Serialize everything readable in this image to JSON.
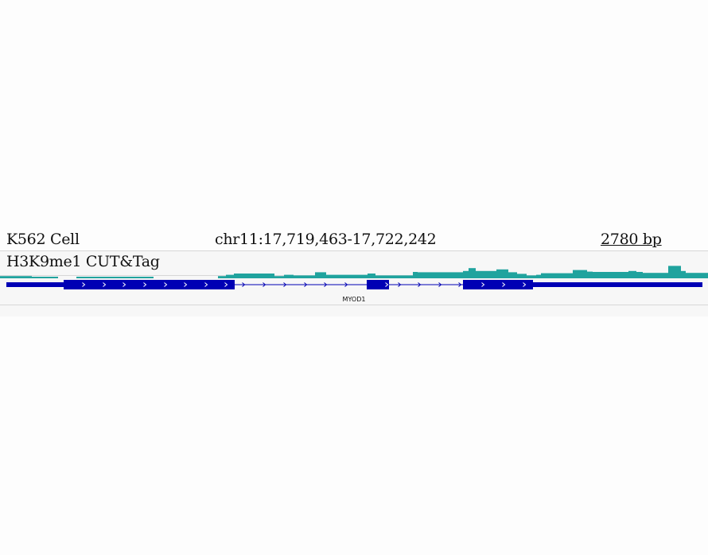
{
  "header": {
    "cell": "K562 Cell",
    "locus": "chr11:17,719,463-17,722,242",
    "scale": "2780 bp"
  },
  "track": {
    "label": "H3K9me1 CUT&Tag",
    "color": "#20a39e",
    "coverage": [
      {
        "start": 0,
        "end": 40,
        "v": 0.35
      },
      {
        "start": 40,
        "end": 73,
        "v": 0.25
      },
      {
        "start": 96,
        "end": 193,
        "v": 0.25
      },
      {
        "start": 274,
        "end": 284,
        "v": 0.35
      },
      {
        "start": 284,
        "end": 294,
        "v": 0.55
      },
      {
        "start": 294,
        "end": 345,
        "v": 0.75
      },
      {
        "start": 345,
        "end": 357,
        "v": 0.35
      },
      {
        "start": 357,
        "end": 369,
        "v": 0.55
      },
      {
        "start": 369,
        "end": 396,
        "v": 0.45
      },
      {
        "start": 396,
        "end": 410,
        "v": 0.95
      },
      {
        "start": 410,
        "end": 462,
        "v": 0.55
      },
      {
        "start": 462,
        "end": 472,
        "v": 0.75
      },
      {
        "start": 472,
        "end": 519,
        "v": 0.45
      },
      {
        "start": 519,
        "end": 525,
        "v": 1.0
      },
      {
        "start": 525,
        "end": 582,
        "v": 0.95
      },
      {
        "start": 582,
        "end": 589,
        "v": 1.15
      },
      {
        "start": 589,
        "end": 598,
        "v": 1.6
      },
      {
        "start": 598,
        "end": 624,
        "v": 1.15
      },
      {
        "start": 624,
        "end": 639,
        "v": 1.4
      },
      {
        "start": 639,
        "end": 650,
        "v": 0.95
      },
      {
        "start": 650,
        "end": 662,
        "v": 0.7
      },
      {
        "start": 662,
        "end": 674,
        "v": 0.45
      },
      {
        "start": 674,
        "end": 680,
        "v": 0.55
      },
      {
        "start": 680,
        "end": 720,
        "v": 0.8
      },
      {
        "start": 720,
        "end": 738,
        "v": 1.3
      },
      {
        "start": 738,
        "end": 745,
        "v": 1.05
      },
      {
        "start": 745,
        "end": 790,
        "v": 1.0
      },
      {
        "start": 790,
        "end": 800,
        "v": 1.15
      },
      {
        "start": 800,
        "end": 808,
        "v": 1.0
      },
      {
        "start": 808,
        "end": 840,
        "v": 0.85
      },
      {
        "start": 840,
        "end": 856,
        "v": 1.95
      },
      {
        "start": 856,
        "end": 862,
        "v": 1.15
      },
      {
        "start": 862,
        "end": 890,
        "v": 0.85
      }
    ]
  },
  "gene": {
    "name": "MYOD1",
    "color": "#0000b4"
  }
}
